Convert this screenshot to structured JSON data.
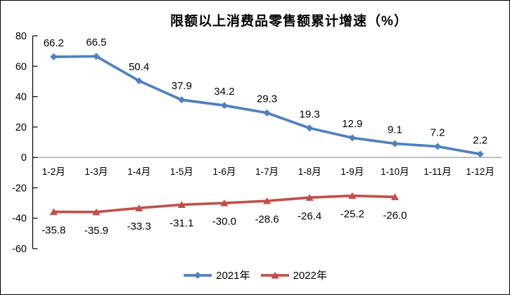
{
  "page": {
    "background": "#ffffff",
    "border_color": "#000000"
  },
  "chart_data": {
    "type": "line",
    "title": "限额以上消费品零售额累计增速（%）",
    "categories": [
      "1-2月",
      "1-3月",
      "1-4月",
      "1-5月",
      "1-6月",
      "1-7月",
      "1-8月",
      "1-9月",
      "1-10月",
      "1-11月",
      "1-12月"
    ],
    "series": [
      {
        "name": "2021年",
        "color": "#4f81bd",
        "marker": "diamond",
        "label_position": "above",
        "values": [
          66.2,
          66.5,
          50.4,
          37.9,
          34.2,
          29.3,
          19.3,
          12.9,
          9.1,
          7.2,
          2.2
        ]
      },
      {
        "name": "2022年",
        "color": "#c0504d",
        "marker": "triangle",
        "label_position": "below",
        "values": [
          -35.8,
          -35.9,
          -33.3,
          -31.1,
          -30.0,
          -28.6,
          -26.4,
          -25.2,
          -26.0
        ]
      }
    ],
    "y_axis": {
      "min": -60,
      "max": 80,
      "step": 20,
      "tick_labels": [
        "80",
        "60",
        "40",
        "20",
        "0",
        "-20",
        "-40",
        "-60"
      ]
    },
    "axis_color": "#000000",
    "zero_line_color": "#9b9b9b",
    "label_color": "#000000",
    "grid": false,
    "legend_position": "bottom"
  }
}
